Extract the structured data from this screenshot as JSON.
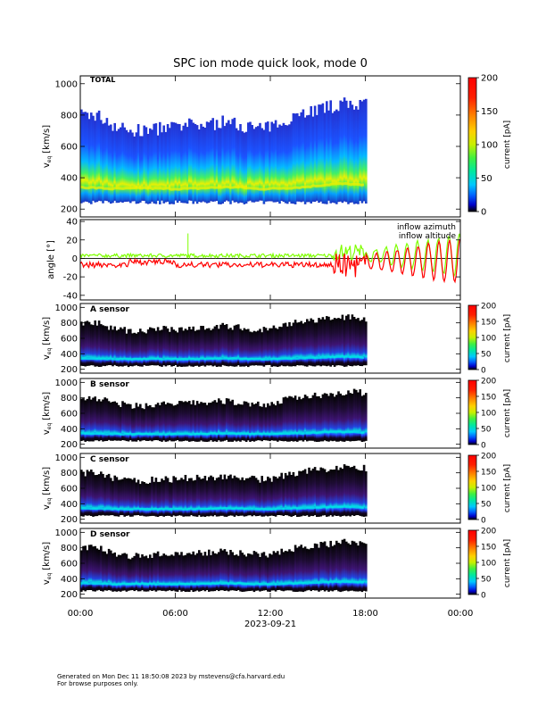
{
  "chart_data": [
    {
      "type": "heatmap",
      "title": "SPC ion mode quick look, mode 0",
      "panel_label": "TOTAL",
      "ylabel": "v",
      "ylabel_sub": "eq",
      "ylabel_unit": "[km/s]",
      "ylim": [
        150,
        1050
      ],
      "yticks": [
        200,
        400,
        600,
        800,
        1000
      ],
      "xlim_hours": [
        0,
        24
      ],
      "data_end_hour": 18,
      "colorbar": {
        "label": "current [pA]",
        "ticks": [
          0,
          50,
          100,
          150,
          200
        ],
        "range": [
          0,
          200
        ]
      },
      "peak_velocity_kms": [
        340,
        335,
        330,
        330,
        335,
        330,
        330,
        330,
        335,
        340,
        340,
        330,
        330,
        335,
        340,
        350,
        360,
        360,
        350
      ],
      "upper_cutoff_kms": [
        780,
        780,
        720,
        680,
        680,
        700,
        700,
        720,
        720,
        740,
        720,
        700,
        700,
        760,
        800,
        820,
        840,
        860,
        840
      ]
    },
    {
      "type": "line",
      "ylabel": "angle [°]",
      "ylim": [
        -45,
        42
      ],
      "yticks": [
        -40,
        -20,
        0,
        20,
        40
      ],
      "series": [
        {
          "name": "inflow azimuth",
          "color": "#ff0000"
        },
        {
          "name": "inflow altitude",
          "color": "#7fff00"
        }
      ]
    },
    {
      "type": "heatmap",
      "panel_label": "A sensor",
      "ylim": [
        150,
        1050
      ],
      "yticks": [
        200,
        400,
        600,
        800,
        1000
      ],
      "colorbar": {
        "label": "current [pA]",
        "ticks": [
          0,
          50,
          100,
          150,
          200
        ]
      }
    },
    {
      "type": "heatmap",
      "panel_label": "B sensor",
      "ylim": [
        150,
        1050
      ],
      "yticks": [
        200,
        400,
        600,
        800,
        1000
      ],
      "colorbar": {
        "label": "current [pA]",
        "ticks": [
          0,
          50,
          100,
          150,
          200
        ]
      }
    },
    {
      "type": "heatmap",
      "panel_label": "C sensor",
      "ylim": [
        150,
        1050
      ],
      "yticks": [
        200,
        400,
        600,
        800,
        1000
      ],
      "colorbar": {
        "label": "current [pA]",
        "ticks": [
          0,
          50,
          100,
          150,
          200
        ]
      }
    },
    {
      "type": "heatmap",
      "panel_label": "D sensor",
      "ylim": [
        150,
        1050
      ],
      "yticks": [
        200,
        400,
        600,
        800,
        1000
      ],
      "colorbar": {
        "label": "current [pA]",
        "ticks": [
          0,
          50,
          100,
          150,
          200
        ]
      }
    }
  ],
  "x_axis": {
    "ticks": [
      "00:00",
      "06:00",
      "12:00",
      "18:00",
      "00:00"
    ],
    "date": "2023-09-21"
  },
  "footer": {
    "line1": "Generated on Mon Dec 11 18:50:08 2023 by mstevens@cfa.harvard.edu",
    "line2": "For browse purposes only."
  },
  "colors": {
    "azimuth": "#ff0000",
    "altitude": "#7fff00",
    "background": "#ffffff",
    "axis": "#000000"
  }
}
